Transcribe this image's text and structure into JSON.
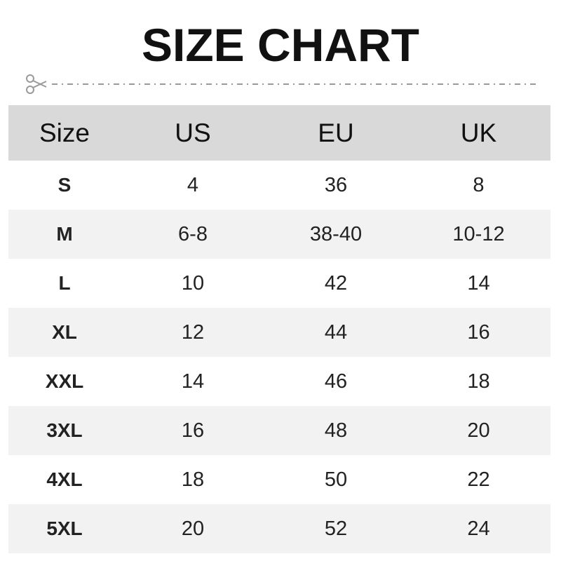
{
  "title": "SIZE CHART",
  "cut_icon": "scissors-icon",
  "colors": {
    "header_bg": "#d9d9d9",
    "alt_row_bg": "#f2f2f2",
    "dash": "#999999"
  },
  "table": {
    "headers": [
      "Size",
      "US",
      "EU",
      "UK"
    ],
    "rows": [
      [
        "S",
        "4",
        "36",
        "8"
      ],
      [
        "M",
        "6-8",
        "38-40",
        "10-12"
      ],
      [
        "L",
        "10",
        "42",
        "14"
      ],
      [
        "XL",
        "12",
        "44",
        "16"
      ],
      [
        "XXL",
        "14",
        "46",
        "18"
      ],
      [
        "3XL",
        "16",
        "48",
        "20"
      ],
      [
        "4XL",
        "18",
        "50",
        "22"
      ],
      [
        "5XL",
        "20",
        "52",
        "24"
      ]
    ]
  }
}
